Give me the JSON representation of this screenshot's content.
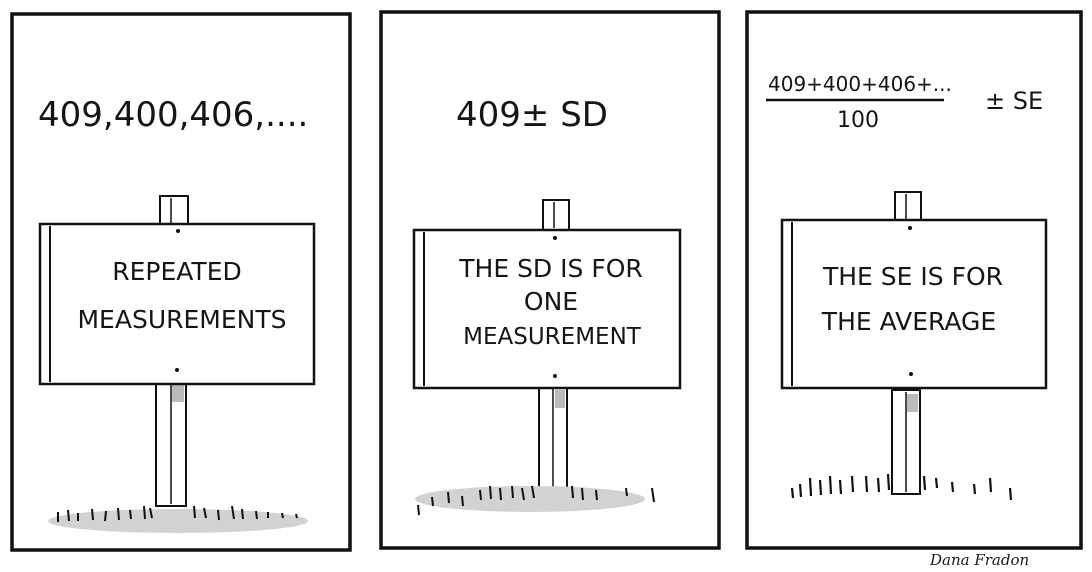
{
  "panels": [
    {
      "top_text": "409,400,406,....",
      "sign_lines": [
        "REPEATED",
        "MEASUREMENTS"
      ]
    },
    {
      "top_text": "409± SD",
      "sign_lines": [
        "THE SD IS FOR",
        "ONE",
        "MEASUREMENT"
      ]
    },
    {
      "top_numerator": "409+400+406+...",
      "top_denominator": "100",
      "top_suffix": "± SE",
      "sign_lines": [
        "THE SE IS FOR",
        "THE AVERAGE"
      ]
    }
  ],
  "signature": "Dana Fradon"
}
